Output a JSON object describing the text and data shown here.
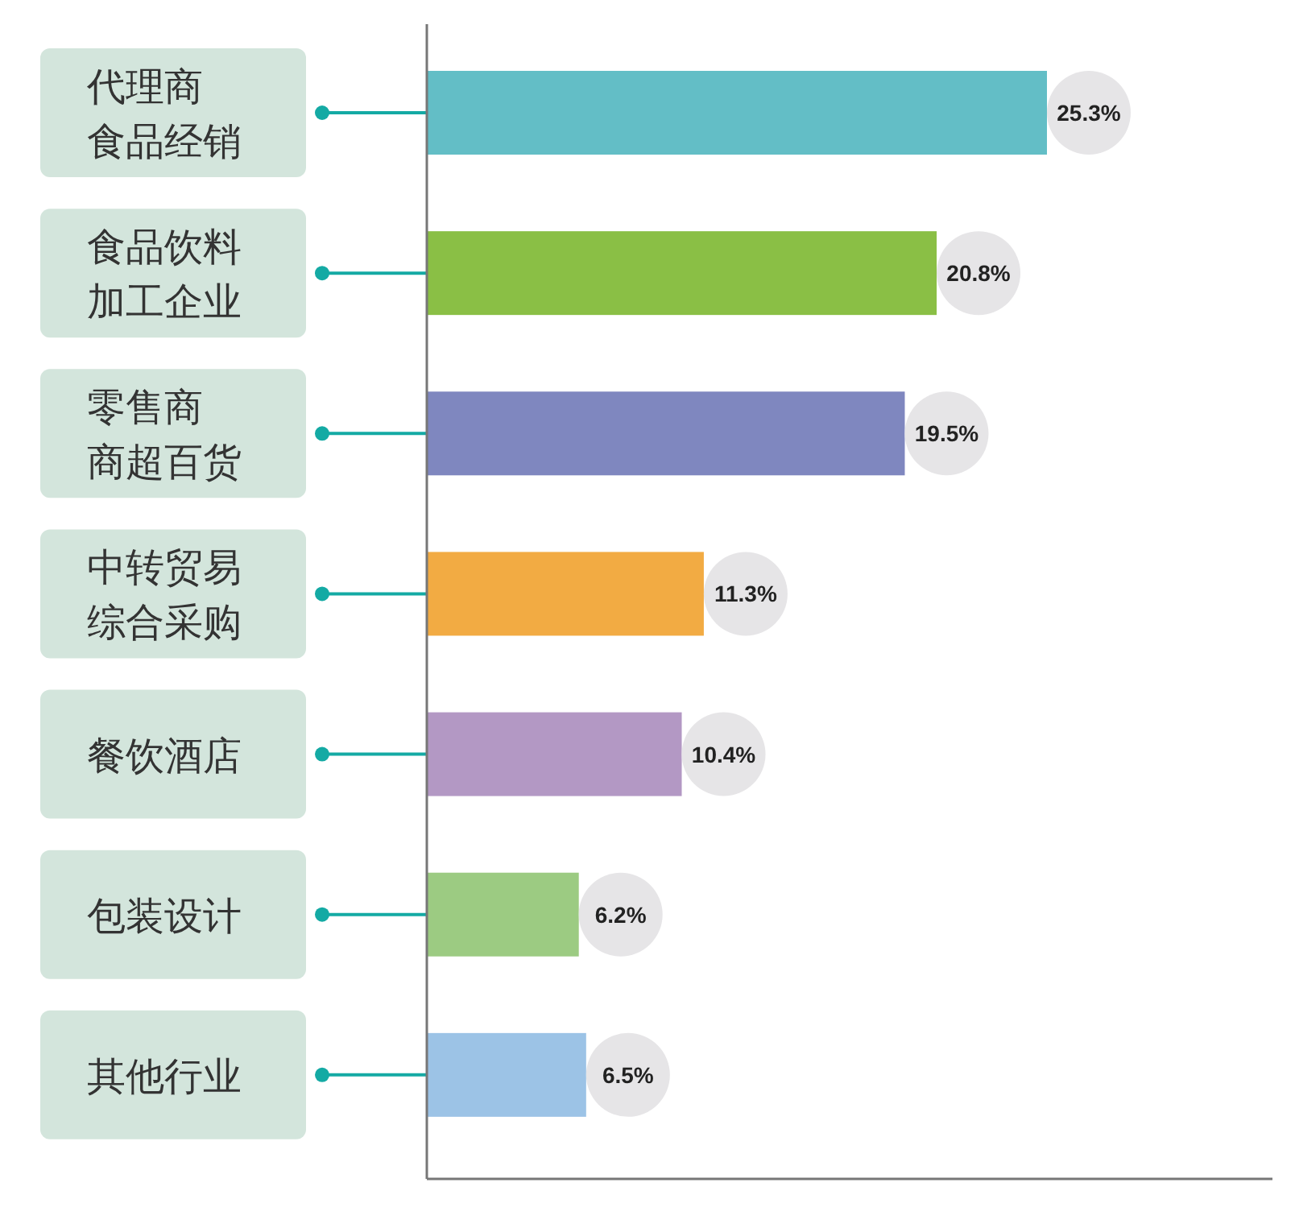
{
  "chart_data": {
    "type": "bar",
    "orientation": "horizontal",
    "categories": [
      "代理商食品经销",
      "食品饮料加工企业",
      "零售商商超百货",
      "中转贸易综合采购",
      "餐饮酒店",
      "包装设计",
      "其他行业"
    ],
    "values": [
      25.3,
      20.8,
      19.5,
      11.3,
      10.4,
      6.2,
      6.5
    ],
    "value_labels": [
      "25.3%",
      "20.8%",
      "19.5%",
      "11.3%",
      "10.4%",
      "6.2%",
      "6.5%"
    ],
    "colors": [
      "#63bec6",
      "#8abf45",
      "#7f87bf",
      "#f2ab43",
      "#b398c4",
      "#9ccb82",
      "#9cc3e6"
    ]
  }
}
